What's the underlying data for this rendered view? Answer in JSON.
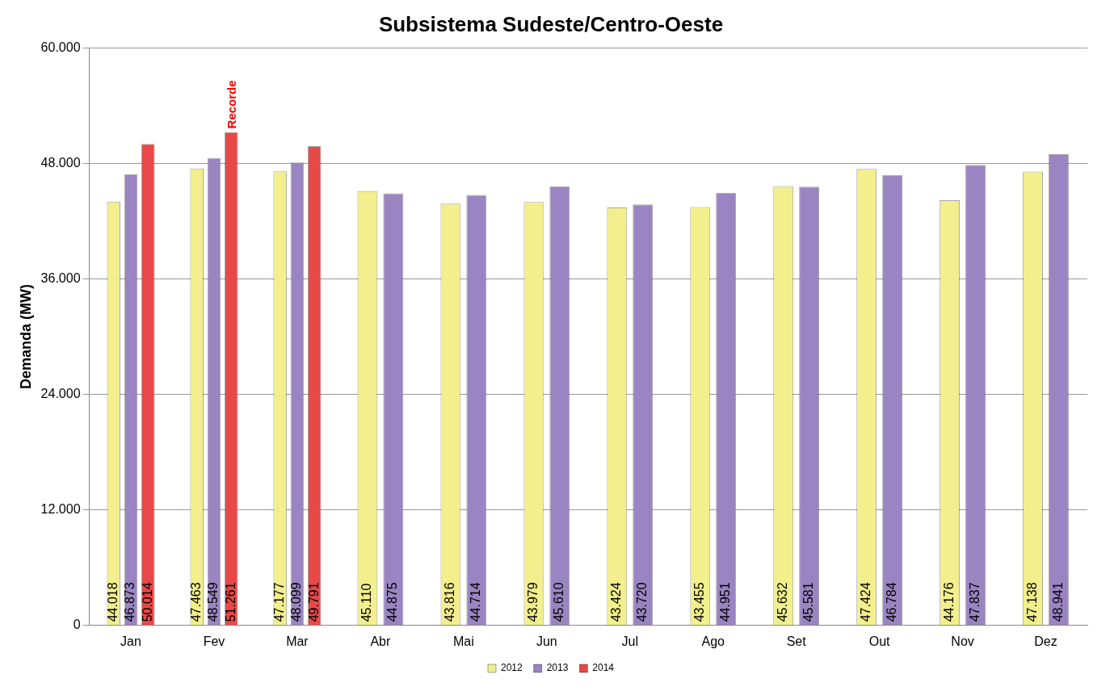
{
  "chart_data": {
    "type": "bar",
    "title": "Subsistema Sudeste/Centro-Oeste",
    "ylabel": "Demanda (MW)",
    "categories": [
      "Jan",
      "Fev",
      "Mar",
      "Abr",
      "Mai",
      "Jun",
      "Jul",
      "Ago",
      "Set",
      "Out",
      "Nov",
      "Dez"
    ],
    "series": [
      {
        "name": "2012",
        "color": "#f2ef8c",
        "values": [
          44018,
          47463,
          47177,
          45110,
          43816,
          43979,
          43424,
          43455,
          45632,
          47424,
          44176,
          47138
        ],
        "value_labels": [
          "44.018",
          "47.463",
          "47.177",
          "45.110",
          "43.816",
          "43.979",
          "43.424",
          "43.455",
          "45.632",
          "47.424",
          "44.176",
          "47.138"
        ]
      },
      {
        "name": "2013",
        "color": "#9a85c2",
        "values": [
          46873,
          48549,
          48099,
          44875,
          44714,
          45610,
          43720,
          44951,
          45581,
          46784,
          47837,
          48941
        ],
        "value_labels": [
          "46.873",
          "48.549",
          "48.099",
          "44.875",
          "44.714",
          "45.610",
          "43.720",
          "44.951",
          "45.581",
          "46.784",
          "47.837",
          "48.941"
        ]
      },
      {
        "name": "2014",
        "color": "#e84848",
        "values": [
          50014,
          51261,
          49791,
          null,
          null,
          null,
          null,
          null,
          null,
          null,
          null,
          null
        ],
        "value_labels": [
          "50.014",
          "51.261",
          "49.791",
          null,
          null,
          null,
          null,
          null,
          null,
          null,
          null,
          null
        ]
      }
    ],
    "ylim": [
      0,
      60000
    ],
    "yticks": [
      {
        "value": 0,
        "label": "0"
      },
      {
        "value": 12000,
        "label": "12.000"
      },
      {
        "value": 24000,
        "label": "24.000"
      },
      {
        "value": 36000,
        "label": "36.000"
      },
      {
        "value": 48000,
        "label": "48.000"
      },
      {
        "value": 60000,
        "label": "60.000"
      }
    ],
    "grid": "y",
    "legend": "bottom",
    "annotations": [
      "Recorde"
    ]
  }
}
